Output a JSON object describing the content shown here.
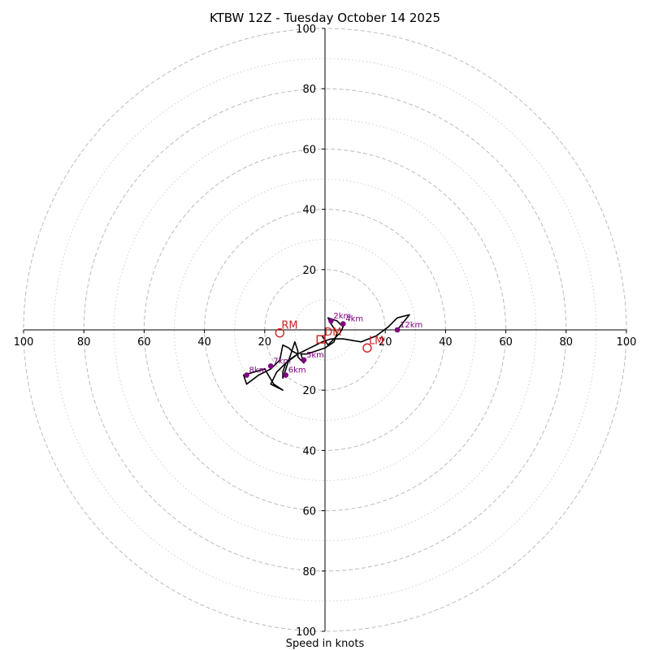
{
  "chart_data": {
    "type": "hodograph",
    "title": "KTBW 12Z - Tuesday October 14 2025",
    "xlabel": "Speed in knots",
    "range": [
      -100,
      100
    ],
    "ring_major": [
      20,
      40,
      60,
      80,
      100
    ],
    "ring_minor": [
      10,
      30,
      50,
      70,
      90
    ],
    "x_ticks": [
      {
        "v": -100,
        "label": "100"
      },
      {
        "v": -80,
        "label": "80"
      },
      {
        "v": -60,
        "label": "60"
      },
      {
        "v": -40,
        "label": "40"
      },
      {
        "v": -20,
        "label": "20"
      },
      {
        "v": 20,
        "label": "20"
      },
      {
        "v": 40,
        "label": "40"
      },
      {
        "v": 60,
        "label": "60"
      },
      {
        "v": 80,
        "label": "80"
      },
      {
        "v": 100,
        "label": "100"
      }
    ],
    "y_ticks": [
      {
        "v": 100,
        "label": "100"
      },
      {
        "v": 80,
        "label": "80"
      },
      {
        "v": 60,
        "label": "60"
      },
      {
        "v": 40,
        "label": "40"
      },
      {
        "v": 20,
        "label": "20"
      },
      {
        "v": -20,
        "label": "20"
      },
      {
        "v": -40,
        "label": "40"
      },
      {
        "v": -60,
        "label": "60"
      },
      {
        "v": -80,
        "label": "80"
      },
      {
        "v": -100,
        "label": "100"
      }
    ],
    "trace": [
      [
        -1,
        -2
      ],
      [
        1,
        -5
      ],
      [
        3,
        -3
      ],
      [
        5,
        -1
      ],
      [
        6,
        1
      ],
      [
        4,
        3
      ],
      [
        1,
        4
      ],
      [
        2,
        2
      ],
      [
        4,
        -1
      ],
      [
        3,
        -4
      ],
      [
        0,
        -6
      ],
      [
        -3,
        -7
      ],
      [
        -6,
        -8
      ],
      [
        -8,
        -8
      ],
      [
        -7,
        -11
      ],
      [
        -9,
        -9
      ],
      [
        -9,
        -7
      ],
      [
        -10,
        -4
      ],
      [
        -11,
        -7
      ],
      [
        -14,
        -16
      ],
      [
        -14,
        -14
      ],
      [
        -13,
        -11
      ],
      [
        -9,
        -8
      ],
      [
        -11,
        -7
      ],
      [
        -12,
        -6
      ],
      [
        -14,
        -5
      ],
      [
        -15,
        -10
      ],
      [
        -18,
        -13
      ],
      [
        -22,
        -15
      ],
      [
        -26,
        -18
      ],
      [
        -27,
        -15
      ],
      [
        -20,
        -13
      ],
      [
        -17,
        -18
      ],
      [
        -14,
        -20
      ],
      [
        -18,
        -18
      ],
      [
        -16,
        -14
      ],
      [
        -14,
        -12
      ],
      [
        -12,
        -10
      ],
      [
        -9,
        -8
      ],
      [
        -7,
        -7
      ],
      [
        -5,
        -6
      ],
      [
        -3,
        -5
      ],
      [
        -1,
        -4
      ],
      [
        2,
        -3
      ],
      [
        6,
        -3
      ],
      [
        12,
        -4
      ],
      [
        17,
        -2
      ],
      [
        21,
        1
      ],
      [
        24,
        4
      ],
      [
        28,
        5
      ],
      [
        24,
        0
      ]
    ],
    "heights": [
      {
        "label": "2km",
        "u": 2,
        "v": 3
      },
      {
        "label": "4km",
        "u": 6,
        "v": 2
      },
      {
        "label": "5km",
        "u": -7,
        "v": -10
      },
      {
        "label": "6km",
        "u": -13,
        "v": -15
      },
      {
        "label": "7km",
        "u": -18,
        "v": -12
      },
      {
        "label": "8km",
        "u": -26,
        "v": -15
      },
      {
        "label": "12km",
        "u": 24,
        "v": 0
      }
    ],
    "storm_motions": [
      {
        "label": "RM",
        "u": -15,
        "v": -1
      },
      {
        "label": "LM",
        "u": 14,
        "v": -6
      },
      {
        "label": "DM",
        "u": -1,
        "v": -3
      }
    ],
    "colors": {
      "trace": "#000000",
      "height_marker": "#800080",
      "storm_motion": "#cc2222",
      "grid_major": "#bbbbbb",
      "grid_minor": "#d0d0d0"
    }
  }
}
